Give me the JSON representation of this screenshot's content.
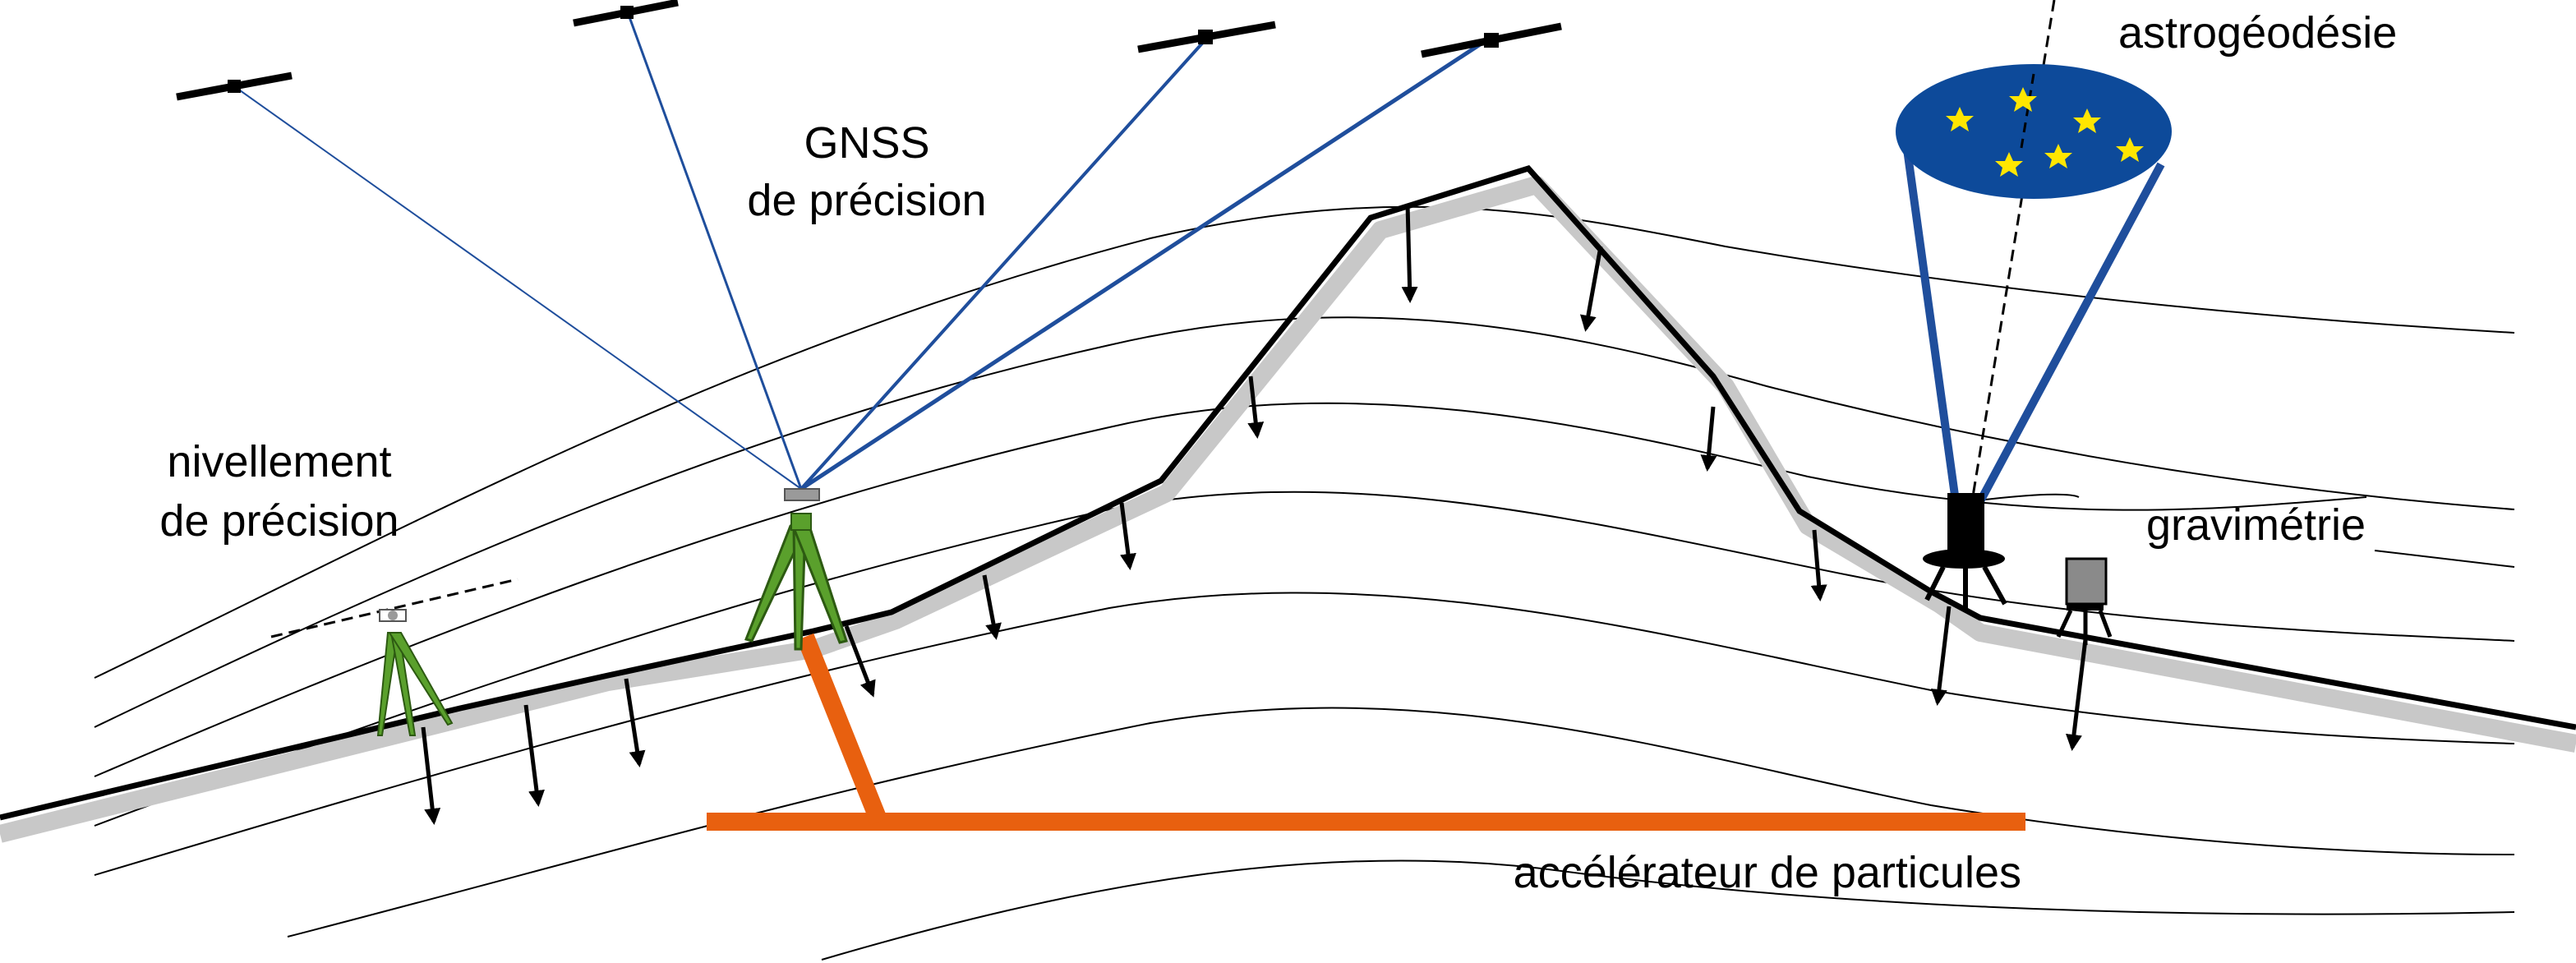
{
  "labels": {
    "gnss_line1": "GNSS",
    "gnss_line2": "de précision",
    "leveling_line1": "nivellement",
    "leveling_line2": "de précision",
    "astro": "astrogéodésie",
    "gravimetry": "gravimétrie",
    "accelerator": "accélérateur de particules"
  },
  "colors": {
    "terrain": "#000000",
    "terrain_shadow": "#c8c8c8",
    "equipotential_lines": "#000000",
    "gnss_signals": "#1f4e9c",
    "accelerator": "#e8600f",
    "sky_disc": "#0d4a9a",
    "stars": "#ffe600",
    "tripod": "#5aa02c",
    "gravimeter": "#8a8a8a"
  },
  "icons": {
    "satellite": "satellite-icon",
    "star": "star-icon",
    "tripod": "tripod-icon",
    "telescope": "telescope-icon",
    "gravimeter": "gravimeter-icon",
    "gravity_arrow": "arrow-down-icon"
  }
}
